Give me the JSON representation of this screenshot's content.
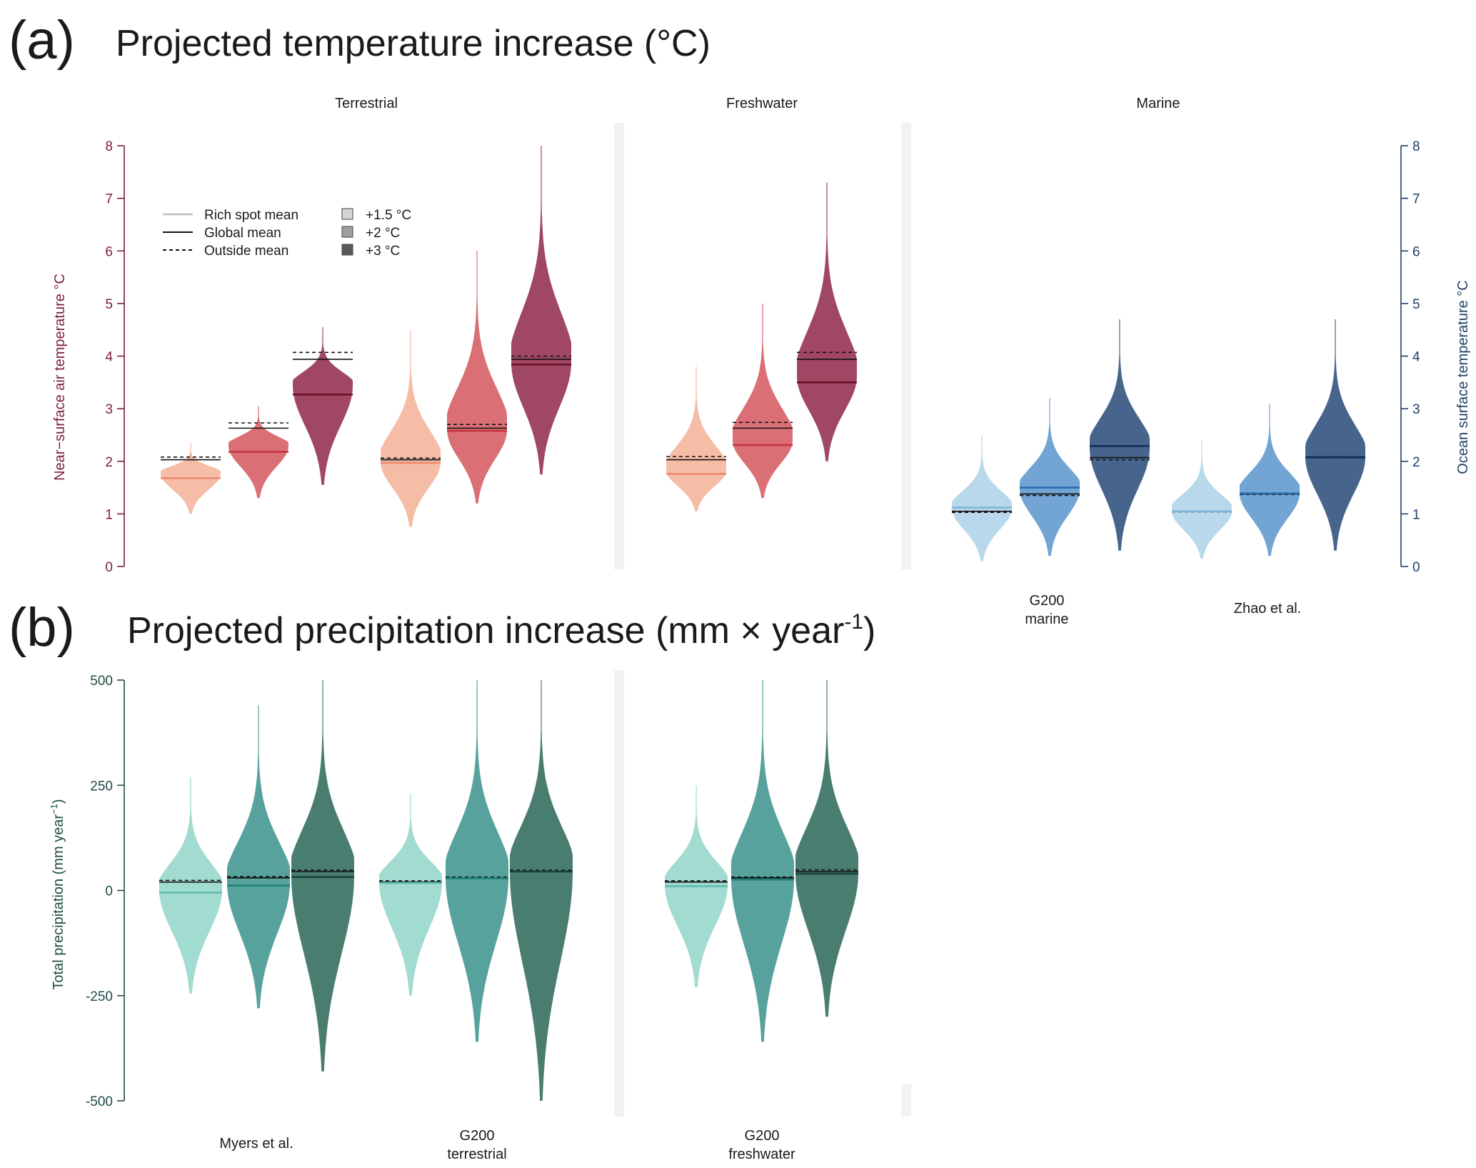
{
  "panel_a": {
    "label": "(a)",
    "title": "Projected temperature increase (°C)",
    "columns": [
      "Terrestrial",
      "Freshwater",
      "Marine"
    ],
    "left_axis_label": "Near−surface air temperature °C",
    "right_axis_label": "Ocean surface temperature °C",
    "left_axis_color": "#7a1f35",
    "right_axis_color": "#1f3f66",
    "legend": {
      "lines": [
        "Rich spot mean",
        "Global mean",
        "Outside mean"
      ],
      "scenarios": [
        "+1.5 °C",
        "+2 °C",
        "+3 °C"
      ]
    }
  },
  "panel_b": {
    "label": "(b)",
    "title_main": "Projected precipitation increase (mm × year",
    "title_sup": "-1",
    "title_end": ")",
    "axis_label_main": "Total precipitation (mm year",
    "axis_label_sup": "−1",
    "axis_label_end": ")",
    "axis_color": "#1e4d46"
  },
  "colors": {
    "terr_15": "#f4b8a1",
    "terr_2": "#d9676f",
    "terr_3": "#9b3d5c",
    "terr_line_15": "#ee8870",
    "terr_line_2": "#c23540",
    "terr_line_3": "#6a1027",
    "mar_15": "#b5d6ea",
    "mar_2": "#6aa0d2",
    "mar_3": "#3d5d86",
    "mar_line_15": "#7fb6d6",
    "mar_line_2": "#2a6cb0",
    "mar_line_3": "#12305a",
    "prec_15": "#9dd9cc",
    "prec_2": "#4f9d98",
    "prec_3": "#3f7668",
    "prec_line_15": "#5dbcae",
    "prec_line_2": "#1f7f7a",
    "prec_line_3": "#17443a"
  },
  "chart_data": [
    {
      "type": "violin",
      "title": "Projected temperature increase (°C)",
      "ylim": [
        0,
        8
      ],
      "yticks": [
        0,
        1,
        2,
        3,
        4,
        5,
        6,
        7,
        8
      ],
      "facets": [
        "Terrestrial",
        "Freshwater",
        "Marine"
      ],
      "groups": [
        {
          "facet": "Terrestrial",
          "dataset": "Myers et al.",
          "axis": "left",
          "series": [
            {
              "scenario": "+1.5 °C",
              "min": 1.0,
              "max": 2.35,
              "rich_mean": 1.68,
              "global_mean": 2.03,
              "outside_mean": 2.08
            },
            {
              "scenario": "+2 °C",
              "min": 1.3,
              "max": 3.05,
              "rich_mean": 2.18,
              "global_mean": 2.63,
              "outside_mean": 2.73
            },
            {
              "scenario": "+3 °C",
              "min": 1.55,
              "max": 4.55,
              "rich_mean": 3.27,
              "global_mean": 3.94,
              "outside_mean": 4.07
            }
          ]
        },
        {
          "facet": "Terrestrial",
          "dataset": "G200 terrestrial",
          "axis": "left",
          "series": [
            {
              "scenario": "+1.5 °C",
              "min": 0.75,
              "max": 4.5,
              "rich_mean": 1.97,
              "global_mean": 2.03,
              "outside_mean": 2.06
            },
            {
              "scenario": "+2 °C",
              "min": 1.2,
              "max": 6.0,
              "rich_mean": 2.58,
              "global_mean": 2.63,
              "outside_mean": 2.7
            },
            {
              "scenario": "+3 °C",
              "min": 1.75,
              "max": 8.0,
              "rich_mean": 3.84,
              "global_mean": 3.94,
              "outside_mean": 4.0
            }
          ]
        },
        {
          "facet": "Freshwater",
          "dataset": "G200 freshwater",
          "axis": "left",
          "series": [
            {
              "scenario": "+1.5 °C",
              "min": 1.05,
              "max": 3.8,
              "rich_mean": 1.76,
              "global_mean": 2.03,
              "outside_mean": 2.09
            },
            {
              "scenario": "+2 °C",
              "min": 1.3,
              "max": 5.0,
              "rich_mean": 2.31,
              "global_mean": 2.63,
              "outside_mean": 2.74
            },
            {
              "scenario": "+3 °C",
              "min": 2.0,
              "max": 7.3,
              "rich_mean": 3.5,
              "global_mean": 3.94,
              "outside_mean": 4.07
            }
          ]
        },
        {
          "facet": "Marine",
          "dataset": "G200 marine",
          "axis": "right",
          "series": [
            {
              "scenario": "+1.5 °C",
              "min": 0.1,
              "max": 2.5,
              "rich_mean": 1.12,
              "global_mean": 1.05,
              "outside_mean": 1.03
            },
            {
              "scenario": "+2 °C",
              "min": 0.2,
              "max": 3.2,
              "rich_mean": 1.5,
              "global_mean": 1.38,
              "outside_mean": 1.35
            },
            {
              "scenario": "+3 °C",
              "min": 0.3,
              "max": 4.7,
              "rich_mean": 2.29,
              "global_mean": 2.07,
              "outside_mean": 2.03
            }
          ]
        },
        {
          "facet": "Marine",
          "dataset": "Zhao et al.",
          "axis": "right",
          "series": [
            {
              "scenario": "+1.5 °C",
              "min": 0.15,
              "max": 2.4,
              "rich_mean": 1.05,
              "global_mean": 1.05,
              "outside_mean": 1.04
            },
            {
              "scenario": "+2 °C",
              "min": 0.2,
              "max": 3.1,
              "rich_mean": 1.39,
              "global_mean": 1.38,
              "outside_mean": 1.37
            },
            {
              "scenario": "+3 °C",
              "min": 0.3,
              "max": 4.7,
              "rich_mean": 2.08,
              "global_mean": 2.07,
              "outside_mean": 2.07
            }
          ]
        }
      ],
      "group_labels": [
        {
          "dataset": "G200 marine",
          "lines": [
            "G200",
            "marine"
          ]
        },
        {
          "dataset": "Zhao et al.",
          "lines": [
            "Zhao et al."
          ]
        }
      ]
    },
    {
      "type": "violin",
      "title": "Projected precipitation increase (mm × year-1)",
      "ylim": [
        -500,
        500
      ],
      "yticks": [
        -500,
        -250,
        0,
        250,
        500
      ],
      "groups": [
        {
          "dataset": "Myers et al.",
          "series": [
            {
              "scenario": "+1.5 °C",
              "min": -245,
              "max": 270,
              "rich_mean": -5,
              "global_mean": 20,
              "outside_mean": 24
            },
            {
              "scenario": "+2 °C",
              "min": -280,
              "max": 440,
              "rich_mean": 12,
              "global_mean": 30,
              "outside_mean": 33
            },
            {
              "scenario": "+3 °C",
              "min": -430,
              "max": 500,
              "rich_mean": 32,
              "global_mean": 45,
              "outside_mean": 48
            }
          ]
        },
        {
          "dataset": "G200 terrestrial",
          "series": [
            {
              "scenario": "+1.5 °C",
              "min": -250,
              "max": 230,
              "rich_mean": 18,
              "global_mean": 20,
              "outside_mean": 23
            },
            {
              "scenario": "+2 °C",
              "min": -360,
              "max": 500,
              "rich_mean": 29,
              "global_mean": 30,
              "outside_mean": 32
            },
            {
              "scenario": "+3 °C",
              "min": -500,
              "max": 500,
              "rich_mean": 45,
              "global_mean": 45,
              "outside_mean": 48
            }
          ]
        },
        {
          "dataset": "G200 freshwater",
          "series": [
            {
              "scenario": "+1.5 °C",
              "min": -230,
              "max": 250,
              "rich_mean": 10,
              "global_mean": 20,
              "outside_mean": 23
            },
            {
              "scenario": "+2 °C",
              "min": -360,
              "max": 500,
              "rich_mean": 26,
              "global_mean": 30,
              "outside_mean": 32
            },
            {
              "scenario": "+3 °C",
              "min": -300,
              "max": 500,
              "rich_mean": 40,
              "global_mean": 45,
              "outside_mean": 49
            }
          ]
        }
      ],
      "group_labels": [
        {
          "dataset": "Myers et al.",
          "lines": [
            "Myers et al."
          ]
        },
        {
          "dataset": "G200 terrestrial",
          "lines": [
            "G200",
            "terrestrial"
          ]
        },
        {
          "dataset": "G200 freshwater",
          "lines": [
            "G200",
            "freshwater"
          ]
        }
      ]
    }
  ]
}
